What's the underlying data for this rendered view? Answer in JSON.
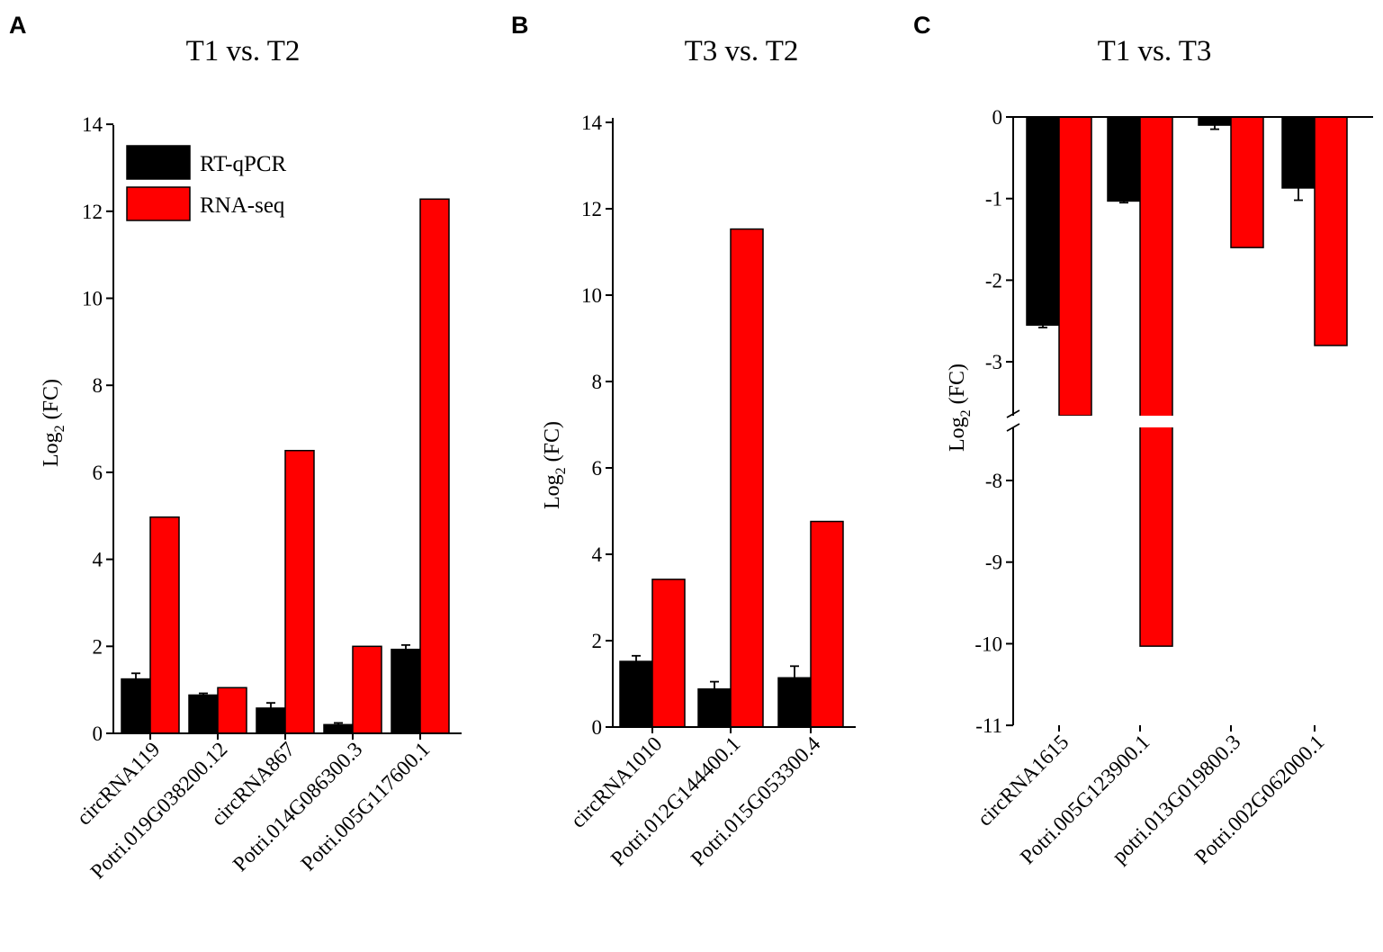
{
  "colors": {
    "rt_qpcr": "#000000",
    "rna_seq": "#ff0000"
  },
  "chart_data": [
    {
      "panel": "A",
      "type": "bar",
      "title": "T1 vs. T2",
      "ylabel": "Log",
      "ylabel_sub": "2",
      "ylabel_tail": " (FC)",
      "ylim": [
        0,
        14
      ],
      "yticks": [
        0,
        2,
        4,
        6,
        8,
        10,
        12,
        14
      ],
      "legend": {
        "position": "top-left",
        "entries": [
          "RT-qPCR",
          "RNA-seq"
        ]
      },
      "categories": [
        "circRNA119",
        "Potri.019G038200.12",
        "circRNA867",
        "Potri.014G086300.3",
        "Potri.005G117600.1"
      ],
      "series": [
        {
          "name": "RT-qPCR",
          "values": [
            1.25,
            0.88,
            0.58,
            0.2,
            1.93
          ],
          "errors": [
            0.13,
            0.04,
            0.12,
            0.04,
            0.1
          ]
        },
        {
          "name": "RNA-seq",
          "values": [
            4.97,
            1.05,
            6.5,
            2.0,
            12.28
          ],
          "errors": [
            0,
            0,
            0,
            0,
            0
          ]
        }
      ]
    },
    {
      "panel": "B",
      "type": "bar",
      "title": "T3 vs. T2",
      "ylabel": "Log",
      "ylabel_sub": "2",
      "ylabel_tail": " (FC)",
      "ylim": [
        0,
        14
      ],
      "yticks": [
        0,
        2,
        4,
        6,
        8,
        10,
        12,
        14
      ],
      "categories": [
        "circRNA1010",
        "Potri.012G144400.1",
        "Potri.015G053300.4"
      ],
      "series": [
        {
          "name": "RT-qPCR",
          "values": [
            1.52,
            0.88,
            1.14
          ],
          "errors": [
            0.13,
            0.17,
            0.27
          ]
        },
        {
          "name": "RNA-seq",
          "values": [
            3.42,
            11.53,
            4.76
          ],
          "errors": [
            0,
            0,
            0
          ]
        }
      ]
    },
    {
      "panel": "C",
      "type": "bar",
      "title": "T1 vs. T3",
      "ylabel": "Log",
      "ylabel_sub": "2",
      "ylabel_tail": " (FC)",
      "axis_break": [
        -3.6,
        -7.5
      ],
      "yticks": [
        0,
        -1,
        -2,
        -3,
        -8,
        -9,
        -10,
        -11
      ],
      "categories": [
        "circRNA1615",
        "Potri.005G123900.1",
        "potri.013G019800.3",
        "Potri.002G062000.1"
      ],
      "series": [
        {
          "name": "RT-qPCR",
          "values": [
            -2.55,
            -1.03,
            -0.1,
            -0.87
          ],
          "errors": [
            0.03,
            0.02,
            0.05,
            0.15
          ]
        },
        {
          "name": "RNA-seq",
          "values": [
            -3.65,
            -10.03,
            -1.6,
            -2.8
          ],
          "errors": [
            0,
            0,
            0,
            0
          ]
        }
      ]
    }
  ]
}
